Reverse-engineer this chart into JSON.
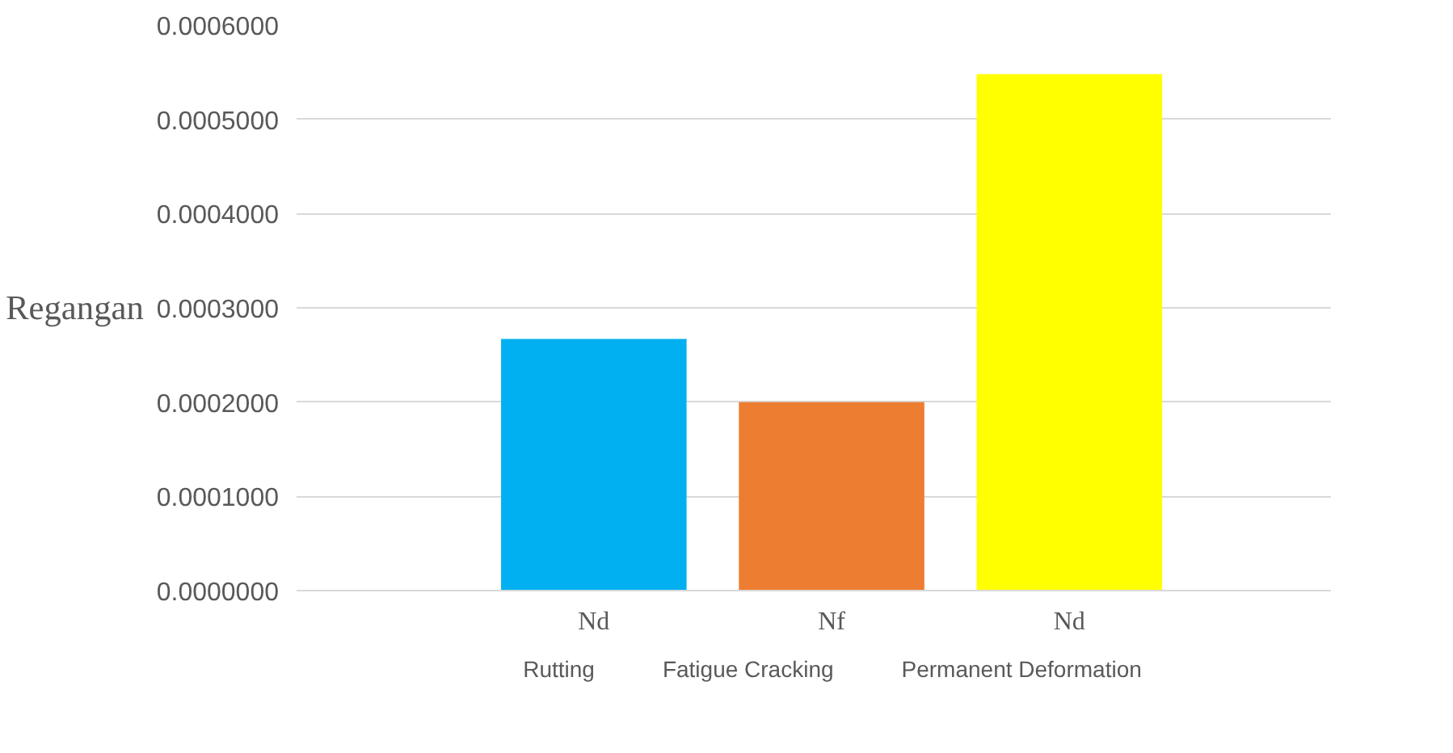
{
  "chart_data": {
    "type": "bar",
    "ylabel": "Regangan",
    "categories": [
      null,
      "Nd",
      "Nf",
      "Nd",
      null
    ],
    "series": [
      {
        "name": "Rutting",
        "color": "#00b0f0",
        "values": [
          null,
          0.000267,
          null,
          null,
          null
        ]
      },
      {
        "name": "Fatigue Cracking",
        "color": "#ed7d31",
        "values": [
          null,
          null,
          0.0002,
          null,
          null
        ]
      },
      {
        "name": "Permanent Deformation",
        "color": "#ffff00",
        "values": [
          null,
          null,
          null,
          0.000548,
          null
        ]
      }
    ],
    "ylim": [
      0,
      0.0006
    ],
    "yticks": [
      {
        "value": 0,
        "label": "0.0000000"
      },
      {
        "value": 0.0001,
        "label": "0.0001000"
      },
      {
        "value": 0.0002,
        "label": "0.0002000"
      },
      {
        "value": 0.0003,
        "label": "0.0003000"
      },
      {
        "value": 0.0004,
        "label": "0.0004000"
      },
      {
        "value": 0.0005,
        "label": "0.0005000"
      },
      {
        "value": 0.0006,
        "label": "0.0006000"
      }
    ],
    "grid": "y",
    "legend": "bottom"
  }
}
